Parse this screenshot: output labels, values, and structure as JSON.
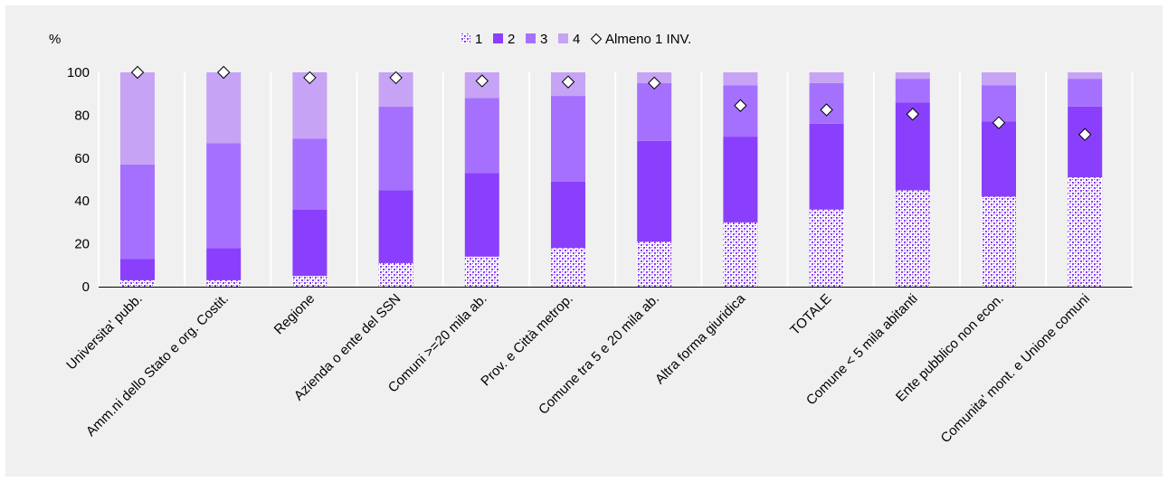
{
  "chart_data": {
    "type": "bar",
    "stacked": true,
    "title": "",
    "ylabel": "%",
    "ylim": [
      0,
      100
    ],
    "yticks": [
      0,
      20,
      40,
      60,
      80,
      100
    ],
    "grid": false,
    "legend_position": "top",
    "categories": [
      "Universita' pubb.",
      "Amm.ni dello Stato e org. Costit.",
      "Regione",
      "Azienda o ente del SSN",
      "Comuni >=20 mila ab.",
      "Prov. e Città metrop.",
      "Comune tra 5 e 20 mila ab.",
      "Altra forma giuridica",
      "TOTALE",
      "Comune < 5 mila abitanti",
      "Ente pubblico non econ.",
      "Comunita' mont. e Unione comuni"
    ],
    "series": [
      {
        "name": "1",
        "color": "#8a3ffc",
        "pattern": "dotted",
        "values": [
          3,
          3,
          5,
          11,
          14,
          18,
          21,
          30,
          36,
          45,
          42,
          51
        ]
      },
      {
        "name": "2",
        "color": "#8a3ffc",
        "pattern": "solid",
        "values": [
          10,
          15,
          31,
          34,
          39,
          31,
          47,
          40,
          40,
          41,
          35,
          33
        ]
      },
      {
        "name": "3",
        "color": "#a670ff",
        "pattern": "solid",
        "values": [
          44,
          49,
          33,
          39,
          35,
          40,
          27,
          24,
          19,
          11,
          17,
          13
        ]
      },
      {
        "name": "4",
        "color": "#c6a3f5",
        "pattern": "solid",
        "values": [
          43,
          33,
          31,
          16,
          12,
          11,
          5,
          6,
          5,
          3,
          6,
          3
        ]
      }
    ],
    "marker_series": {
      "name": "Almeno 1 INV.",
      "marker": "diamond",
      "values": [
        100,
        100,
        97.5,
        97.5,
        96,
        95.5,
        95,
        84.5,
        82.5,
        80.5,
        76.5,
        71
      ]
    }
  }
}
